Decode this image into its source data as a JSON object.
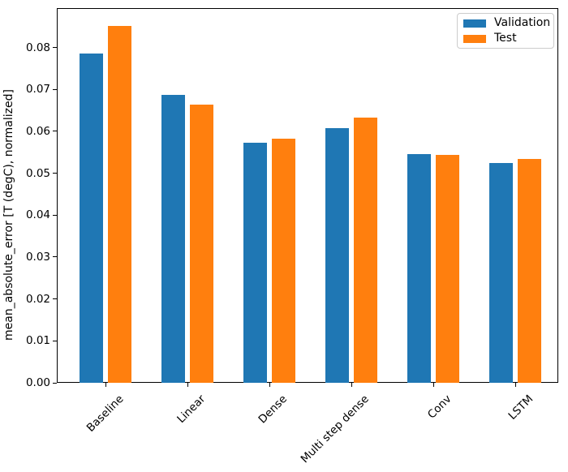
{
  "chart_data": {
    "type": "bar",
    "title": "",
    "xlabel": "",
    "ylabel": "mean_absolute_error [T (degC), normalized]",
    "categories": [
      "Baseline",
      "Linear",
      "Dense",
      "Multi step dense",
      "Conv",
      "LSTM"
    ],
    "series": [
      {
        "name": "Validation",
        "color": "#1f77b4",
        "values": [
          0.0785,
          0.0687,
          0.0573,
          0.0607,
          0.0545,
          0.0524
        ]
      },
      {
        "name": "Test",
        "color": "#ff7f0e",
        "values": [
          0.0852,
          0.0663,
          0.0583,
          0.0633,
          0.0543,
          0.0534
        ]
      }
    ],
    "ylim": [
      0,
      0.0894
    ],
    "yticks": [
      0.0,
      0.01,
      0.02,
      0.03,
      0.04,
      0.05,
      0.06,
      0.07,
      0.08
    ],
    "ytick_labels": [
      "0.00",
      "0.01",
      "0.02",
      "0.03",
      "0.04",
      "0.05",
      "0.06",
      "0.07",
      "0.08"
    ],
    "xtick_rotation_deg": 45,
    "grid": false,
    "legend_position": "upper right",
    "axes_facecolor": "#ffffff",
    "spine_color": "#000000"
  }
}
